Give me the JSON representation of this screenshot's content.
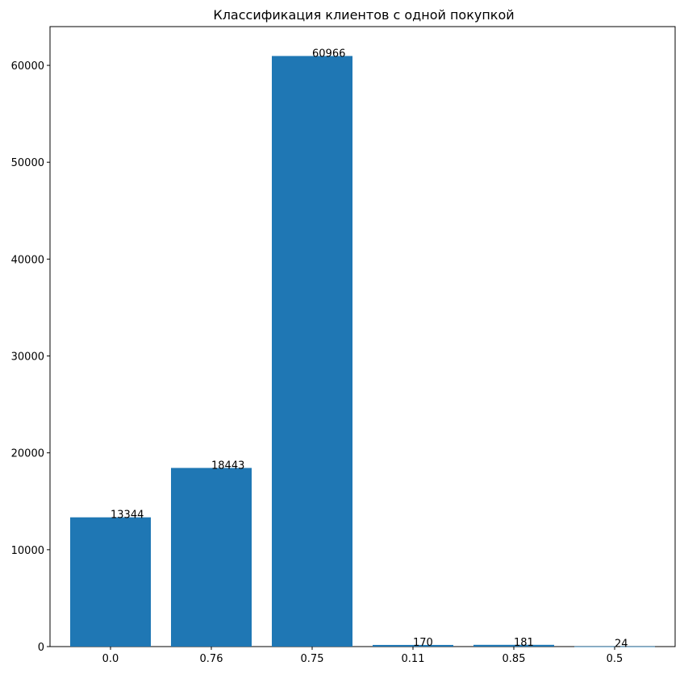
{
  "chart_data": {
    "type": "bar",
    "title": "Классификация клиентов с одной покупкой",
    "xlabel": "",
    "ylabel": "",
    "categories": [
      "0.0",
      "0.76",
      "0.75",
      "0.11",
      "0.85",
      "0.5"
    ],
    "values": [
      13344,
      18443,
      60966,
      170,
      181,
      24
    ],
    "data_labels": [
      "13344",
      "18443",
      "60966",
      "170",
      "181",
      "24"
    ],
    "ylim": [
      0,
      64000
    ],
    "yticks": [
      0,
      10000,
      20000,
      30000,
      40000,
      50000,
      60000
    ],
    "ytick_labels": [
      "0",
      "10000",
      "20000",
      "30000",
      "40000",
      "50000",
      "60000"
    ],
    "grid": false,
    "legend": "none",
    "bar_color": "#1f77b4"
  }
}
